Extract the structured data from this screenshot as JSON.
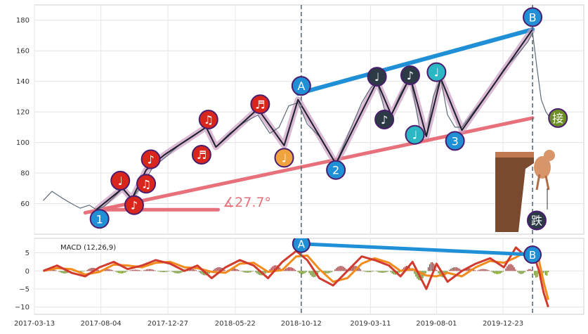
{
  "chart_data": [
    {
      "type": "line",
      "panel": "price",
      "grid": true,
      "ylim": [
        40,
        190
      ],
      "xlim": [
        "2017-03-13",
        "2020-06-15"
      ],
      "yticks": [
        60,
        80,
        100,
        120,
        140,
        160,
        180
      ],
      "ytick_labels": [
        "60",
        "80",
        "100",
        "120",
        "140",
        "160",
        "180"
      ],
      "angle_label": "∡27.7°",
      "series": [
        {
          "role": "price",
          "points": [
            [
              "2017-04-01",
              62
            ],
            [
              "2017-04-20",
              68
            ],
            [
              "2017-05-10",
              64
            ],
            [
              "2017-06-01",
              60
            ],
            [
              "2017-06-20",
              57
            ],
            [
              "2017-07-10",
              59
            ],
            [
              "2017-07-25",
              56
            ],
            [
              "2017-08-10",
              58
            ],
            [
              "2017-09-01",
              64
            ],
            [
              "2017-09-20",
              70
            ],
            [
              "2017-10-10",
              63
            ],
            [
              "2017-11-01",
              72
            ],
            [
              "2017-11-25",
              84
            ],
            [
              "2017-12-20",
              90
            ],
            [
              "2018-01-20",
              98
            ],
            [
              "2018-02-20",
              104
            ],
            [
              "2018-03-20",
              110
            ],
            [
              "2018-04-10",
              97
            ],
            [
              "2018-05-10",
              106
            ],
            [
              "2018-06-10",
              113
            ],
            [
              "2018-07-10",
              118
            ],
            [
              "2018-08-05",
              106
            ],
            [
              "2018-08-25",
              110
            ],
            [
              "2018-09-15",
              124
            ],
            [
              "2018-10-05",
              126
            ],
            [
              "2018-10-25",
              112
            ],
            [
              "2018-11-20",
              104
            ],
            [
              "2018-12-10",
              94
            ],
            [
              "2018-12-26",
              86
            ],
            [
              "2019-01-20",
              104
            ],
            [
              "2019-02-20",
              126
            ],
            [
              "2019-03-10",
              135
            ],
            [
              "2019-03-25",
              140
            ],
            [
              "2019-04-10",
              122
            ],
            [
              "2019-04-25",
              118
            ],
            [
              "2019-05-15",
              132
            ],
            [
              "2019-06-05",
              143
            ],
            [
              "2019-06-25",
              110
            ],
            [
              "2019-07-10",
              104
            ],
            [
              "2019-07-25",
              130
            ],
            [
              "2019-08-10",
              142
            ],
            [
              "2019-08-25",
              118
            ],
            [
              "2019-09-10",
              110
            ],
            [
              "2019-09-25",
              110
            ],
            [
              "2019-10-25",
              122
            ],
            [
              "2019-11-25",
              134
            ],
            [
              "2019-12-25",
              148
            ],
            [
              "2020-01-25",
              158
            ],
            [
              "2020-02-15",
              166
            ],
            [
              "2020-02-25",
              172
            ],
            [
              "2020-03-05",
              150
            ],
            [
              "2020-03-15",
              128
            ],
            [
              "2020-03-25",
              120
            ],
            [
              "2020-04-05",
              115
            ]
          ]
        },
        {
          "role": "zigzag",
          "points": [
            [
              "2017-07-25",
              56
            ],
            [
              "2017-09-20",
              70
            ],
            [
              "2017-10-10",
              63
            ],
            [
              "2017-11-10",
              82
            ],
            [
              "2017-12-20",
              92
            ],
            [
              "2018-03-20",
              110
            ],
            [
              "2018-04-10",
              97
            ],
            [
              "2018-07-10",
              122
            ],
            [
              "2018-09-05",
              98
            ],
            [
              "2018-10-05",
              128
            ],
            [
              "2018-12-26",
              86
            ],
            [
              "2019-03-25",
              140
            ],
            [
              "2019-04-25",
              118
            ],
            [
              "2019-06-05",
              143
            ],
            [
              "2019-07-10",
              104
            ],
            [
              "2019-08-10",
              142
            ],
            [
              "2019-09-25",
              108
            ],
            [
              "2020-02-25",
              174
            ]
          ]
        },
        {
          "role": "upper-trendline",
          "points": [
            [
              "2018-10-05",
              132
            ],
            [
              "2020-02-25",
              174
            ]
          ]
        },
        {
          "role": "lower-trendline",
          "points": [
            [
              "2017-07-01",
              54
            ],
            [
              "2020-02-25",
              116
            ]
          ]
        },
        {
          "role": "angle-baseline",
          "points": [
            [
              "2017-07-25",
              56
            ],
            [
              "2018-04-15",
              56
            ]
          ]
        }
      ],
      "vlines": [
        "2018-10-12",
        "2020-02-25"
      ],
      "markers": [
        {
          "label": "1",
          "x": "2017-08-01",
          "y": 50,
          "color": "#1f8fd6"
        },
        {
          "label": "2",
          "x": "2018-12-26",
          "y": 82,
          "color": "#1f8fd6"
        },
        {
          "label": "3",
          "x": "2019-09-10",
          "y": 101,
          "color": "#1f8fd6"
        },
        {
          "label": "A",
          "x": "2018-10-12",
          "y": 137,
          "color": "#1f8fd6"
        },
        {
          "label": "B",
          "x": "2020-02-25",
          "y": 182,
          "color": "#1f8fd6"
        },
        {
          "label": "♪",
          "x": "2017-10-15",
          "y": 59,
          "color": "#d8261c"
        },
        {
          "label": "♩",
          "x": "2017-09-15",
          "y": 75,
          "color": "#d8261c"
        },
        {
          "label": "♫",
          "x": "2017-11-10",
          "y": 73,
          "color": "#d8261c"
        },
        {
          "label": "♪",
          "x": "2017-11-20",
          "y": 89,
          "color": "#d8261c"
        },
        {
          "label": "♬",
          "x": "2018-03-10",
          "y": 92,
          "color": "#d8261c"
        },
        {
          "label": "♫",
          "x": "2018-03-25",
          "y": 115,
          "color": "#d8261c"
        },
        {
          "label": "♬",
          "x": "2018-07-15",
          "y": 125,
          "color": "#d8261c"
        },
        {
          "label": "♩",
          "x": "2018-09-05",
          "y": 90,
          "color": "#f0a23c"
        },
        {
          "label": "♩",
          "x": "2019-03-25",
          "y": 143,
          "color": "#2b3a45"
        },
        {
          "label": "♪",
          "x": "2019-04-10",
          "y": 115,
          "color": "#2b3a45"
        },
        {
          "label": "♪",
          "x": "2019-06-05",
          "y": 144,
          "color": "#2b3a45"
        },
        {
          "label": "♩",
          "x": "2019-06-15",
          "y": 105,
          "color": "#2bb8c4"
        },
        {
          "label": "♩",
          "x": "2019-08-01",
          "y": 146,
          "color": "#2bb8c4"
        },
        {
          "label": "接",
          "x": "2020-04-20",
          "y": 116,
          "color": "#6b8e23"
        },
        {
          "label": "跌",
          "x": "2020-03-05",
          "y": 49,
          "color": "#2b3a45"
        }
      ]
    },
    {
      "type": "line",
      "panel": "macd",
      "legend": "MACD (12,26,9)",
      "grid": true,
      "ylim": [
        -12,
        9
      ],
      "yticks": [
        -10,
        -5,
        0,
        5
      ],
      "ytick_labels": [
        "−10",
        "−5",
        "0",
        "5"
      ],
      "xticks": [
        "2017-03-13",
        "2017-08-04",
        "2017-12-27",
        "2018-05-22",
        "2018-10-12",
        "2019-03-11",
        "2019-08-01",
        "2019-12-23"
      ],
      "series": [
        {
          "role": "macd",
          "points": [
            [
              "2017-04-01",
              0
            ],
            [
              "2017-05-01",
              1.5
            ],
            [
              "2017-06-01",
              -0.5
            ],
            [
              "2017-07-01",
              -1.5
            ],
            [
              "2017-08-01",
              1
            ],
            [
              "2017-09-01",
              2.5
            ],
            [
              "2017-10-01",
              0.5
            ],
            [
              "2017-11-01",
              1.5
            ],
            [
              "2017-12-01",
              3
            ],
            [
              "2018-01-01",
              2
            ],
            [
              "2018-02-01",
              0
            ],
            [
              "2018-03-01",
              1.5
            ],
            [
              "2018-04-01",
              -2
            ],
            [
              "2018-05-01",
              1
            ],
            [
              "2018-06-01",
              3
            ],
            [
              "2018-07-01",
              1.5
            ],
            [
              "2018-08-01",
              -2
            ],
            [
              "2018-09-01",
              2.5
            ],
            [
              "2018-10-01",
              5.5
            ],
            [
              "2018-10-25",
              3
            ],
            [
              "2018-11-20",
              -2
            ],
            [
              "2018-12-20",
              -4
            ],
            [
              "2019-01-20",
              0
            ],
            [
              "2019-02-20",
              4
            ],
            [
              "2019-03-20",
              3
            ],
            [
              "2019-04-20",
              1.5
            ],
            [
              "2019-05-15",
              -1.5
            ],
            [
              "2019-06-10",
              2.5
            ],
            [
              "2019-07-10",
              -5
            ],
            [
              "2019-08-01",
              2
            ],
            [
              "2019-08-25",
              -3
            ],
            [
              "2019-09-25",
              0
            ],
            [
              "2019-10-25",
              2
            ],
            [
              "2019-11-25",
              3.5
            ],
            [
              "2019-12-25",
              1
            ],
            [
              "2020-01-20",
              6.5
            ],
            [
              "2020-02-10",
              4
            ],
            [
              "2020-02-25",
              5.5
            ],
            [
              "2020-03-10",
              0
            ],
            [
              "2020-03-20",
              -6
            ],
            [
              "2020-03-30",
              -10
            ]
          ]
        },
        {
          "role": "divergence-line",
          "points": [
            [
              "2018-10-12",
              7.5
            ],
            [
              "2020-02-25",
              4.5
            ]
          ]
        }
      ],
      "vlines": [
        "2018-10-12",
        "2020-02-25"
      ],
      "markers": [
        {
          "label": "A",
          "x": "2018-10-12",
          "y": 7.5,
          "color": "#1f8fd6"
        },
        {
          "label": "B",
          "x": "2020-02-25",
          "y": 4.5,
          "color": "#1f8fd6"
        }
      ]
    }
  ]
}
